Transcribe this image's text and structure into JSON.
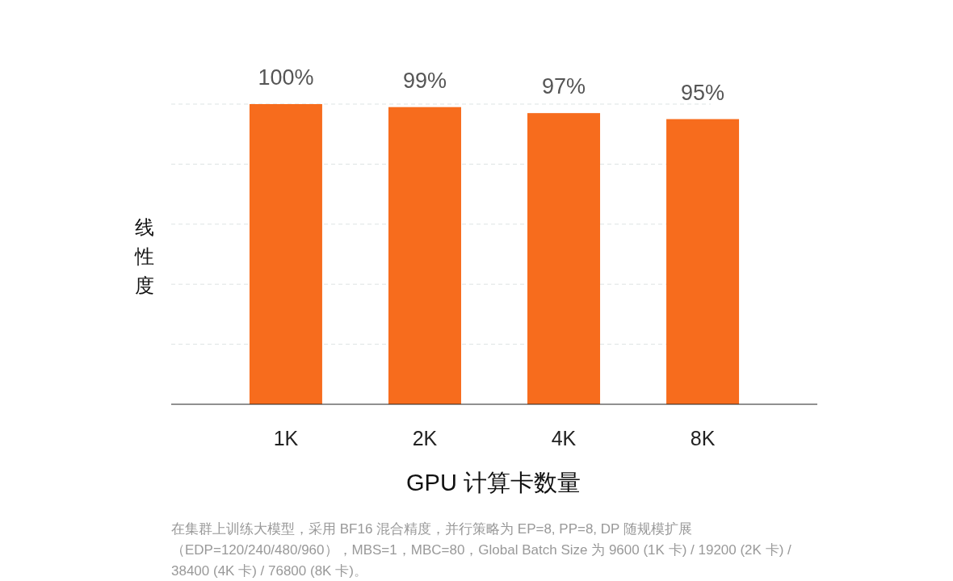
{
  "chart_data": {
    "type": "bar",
    "categories": [
      "1K",
      "2K",
      "4K",
      "8K"
    ],
    "values": [
      100,
      99,
      97,
      95
    ],
    "value_labels": [
      "100%",
      "99%",
      "97%",
      "95%"
    ],
    "color": "#f76c1d",
    "ylim": [
      0,
      100
    ],
    "yticks": [
      {
        "value": 20,
        "label": null
      },
      {
        "value": 40,
        "label": null
      },
      {
        "value": 60,
        "label": null
      },
      {
        "value": 80,
        "label": null
      },
      {
        "value": 100,
        "label": null
      }
    ],
    "grid": "y",
    "xlabel": "GPU 计算卡数量",
    "ylabel": "线性度",
    "annotations": [
      "在集群上训练大模型，采用 BF16 混合精度，并行策略为 EP=8, PP=8, DP 随规模扩展（EDP=120/240/480/960），MBS=1，MBC=80，Global Batch Size 为 9600 (1K 卡) / 19200 (2K 卡) / 38400 (4K 卡) / 76800 (8K 卡)。"
    ]
  }
}
